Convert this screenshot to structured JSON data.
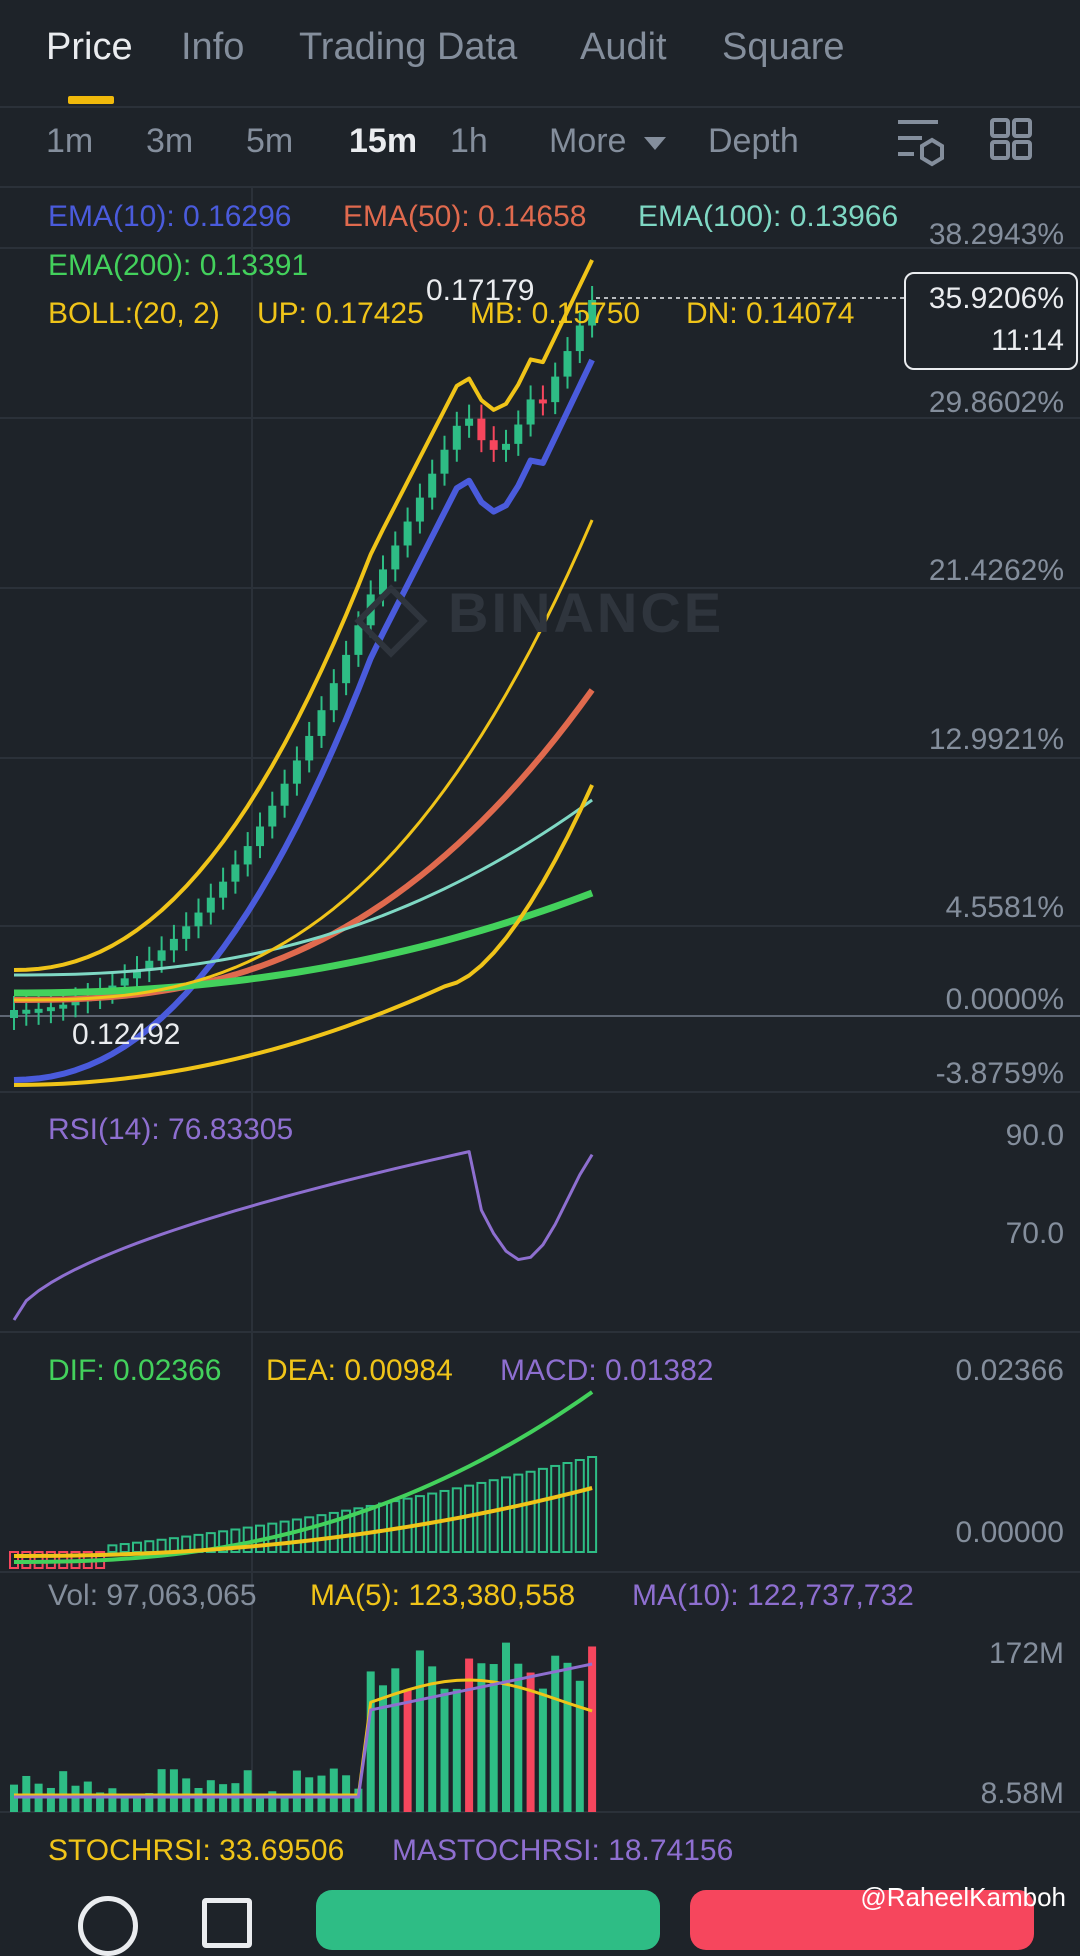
{
  "tabs": [
    {
      "label": "Price",
      "active": true
    },
    {
      "label": "Info",
      "active": false
    },
    {
      "label": "Trading Data",
      "active": false
    },
    {
      "label": "Audit",
      "active": false
    },
    {
      "label": "Square",
      "active": false
    }
  ],
  "intervals": {
    "items": [
      "1m",
      "3m",
      "5m",
      "15m",
      "1h"
    ],
    "active": "15m",
    "more_label": "More",
    "depth_label": "Depth"
  },
  "indicators": {
    "ema10": "EMA(10): 0.16296",
    "ema50": "EMA(50): 0.14658",
    "ema100": "EMA(100): 0.13966",
    "ema200": "EMA(200): 0.13391",
    "boll": "BOLL:(20, 2)",
    "boll_up": "UP: 0.17425",
    "boll_mb": "MB: 0.15750",
    "boll_dn": "DN: 0.14074"
  },
  "price_axis": [
    "38.2943%",
    "29.8602%",
    "21.4262%",
    "12.9921%",
    "4.5581%",
    "0.0000%",
    "-3.8759%"
  ],
  "high_marker": "0.17179",
  "low_marker": "0.12492",
  "current_tag": {
    "percent": "35.9206%",
    "countdown": "11:14"
  },
  "watermark": "BINANCE",
  "rsi": {
    "label": "RSI(14): 76.83305",
    "axis": [
      "90.0",
      "70.0"
    ]
  },
  "macd": {
    "dif": "DIF: 0.02366",
    "dea": "DEA: 0.00984",
    "macd": "MACD: 0.01382",
    "axis": [
      "0.02366",
      "0.00000"
    ]
  },
  "volume": {
    "vol": "Vol: 97,063,065",
    "ma5": "MA(5): 123,380,558",
    "ma10": "MA(10): 122,737,732",
    "axis": [
      "172M",
      "8.58M"
    ]
  },
  "stochrsi": {
    "stoch": "STOCHRSI: 33.69506",
    "mastoch": "MASTOCHRSI: 18.74156"
  },
  "credit": "@RaheelKamboh",
  "colors": {
    "background": "#1e2329",
    "accent": "#f0b90b",
    "up": "#2ebd85",
    "down": "#f6465d",
    "ema10": "#4a5bdc",
    "ema50": "#e06a4e",
    "ema100": "#7fd8c4",
    "ema200": "#43d15c",
    "boll": "#f0c419",
    "rsi": "#8e6fd0"
  },
  "icons": [
    "chart-settings-icon",
    "grid-layout-icon",
    "chat-icon",
    "document-icon",
    "binance-logo-icon"
  ]
}
